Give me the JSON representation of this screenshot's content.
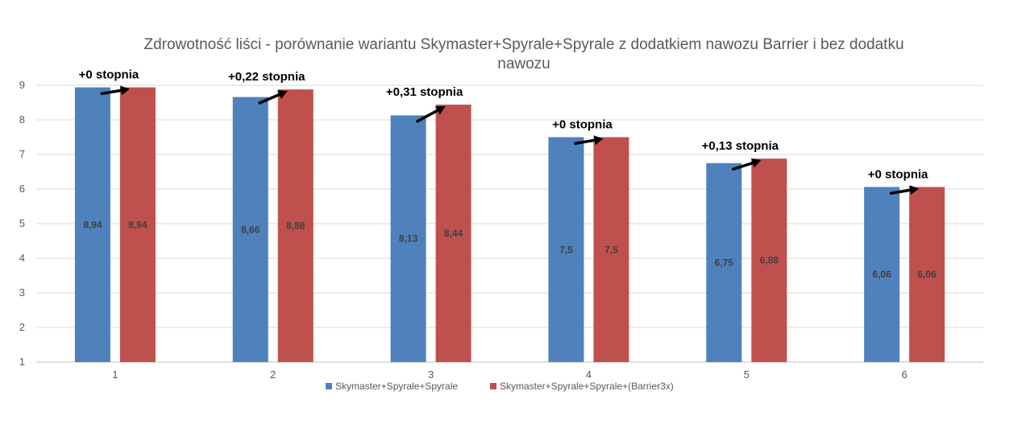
{
  "chart_data": {
    "type": "bar",
    "title": "Zdrowotność liści - porównanie wariantu Skymaster+Spyrale+Spyrale z dodatkiem nawozu Barrier i bez dodatku nawozu",
    "categories": [
      "1",
      "2",
      "3",
      "4",
      "5",
      "6"
    ],
    "series": [
      {
        "name": "Skymaster+Spyrale+Spyrale",
        "color": "#4f81bd",
        "values": [
          8.94,
          8.66,
          8.13,
          7.5,
          6.75,
          6.06
        ],
        "labels": [
          "8,94",
          "8,66",
          "8,13",
          "7,5",
          "6,75",
          "6,06"
        ]
      },
      {
        "name": "Skymaster+Spyrale+Spyrale+(Barrier3x)",
        "color": "#c0504d",
        "values": [
          8.94,
          8.88,
          8.44,
          7.5,
          6.88,
          6.06
        ],
        "labels": [
          "8,94",
          "8,88",
          "8,44",
          "7,5",
          "6,88",
          "6,06"
        ]
      }
    ],
    "annotations": [
      "+0 stopnia",
      "+0,22 stopnia",
      "+0,31 stopnia",
      "+0 stopnia",
      "+0,13 stopnia",
      "+0 stopnia"
    ],
    "ylim": [
      1,
      9
    ],
    "yticks": [
      "1",
      "2",
      "3",
      "4",
      "5",
      "6",
      "7",
      "8",
      "9"
    ],
    "grid": true,
    "legend": "bottom",
    "xlabel": "",
    "ylabel": ""
  }
}
